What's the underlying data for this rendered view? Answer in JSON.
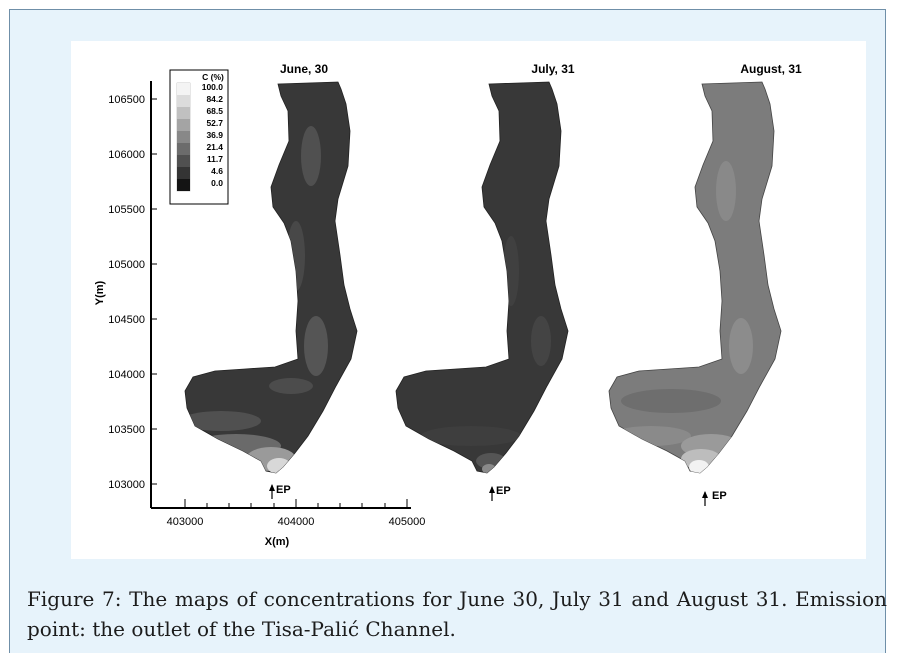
{
  "figure": {
    "panels": [
      {
        "title": "June, 30",
        "ep_label": "EP"
      },
      {
        "title": "July, 31",
        "ep_label": "EP"
      },
      {
        "title": "August, 31",
        "ep_label": "EP"
      }
    ],
    "y_axis": {
      "label": "Y(m)",
      "ticks": [
        "106500",
        "106000",
        "105500",
        "105000",
        "104500",
        "104000",
        "103500",
        "103000"
      ]
    },
    "x_axis": {
      "label": "X(m)",
      "ticks": [
        "403000",
        "404000",
        "405000"
      ]
    },
    "legend": {
      "title": "C (%)",
      "levels": [
        "100.0",
        "84.2",
        "68.5",
        "52.7",
        "36.9",
        "21.4",
        "11.7",
        "4.6",
        "0.0"
      ]
    },
    "colors": {
      "frame_bg": "#e7f3fb",
      "frame_border": "#6f8fa8"
    }
  },
  "caption": {
    "text": "Figure 7: The maps of concentrations for June 30, July 31 and August 31. Emission point: the outlet of the Tisa-Palić Channel."
  }
}
